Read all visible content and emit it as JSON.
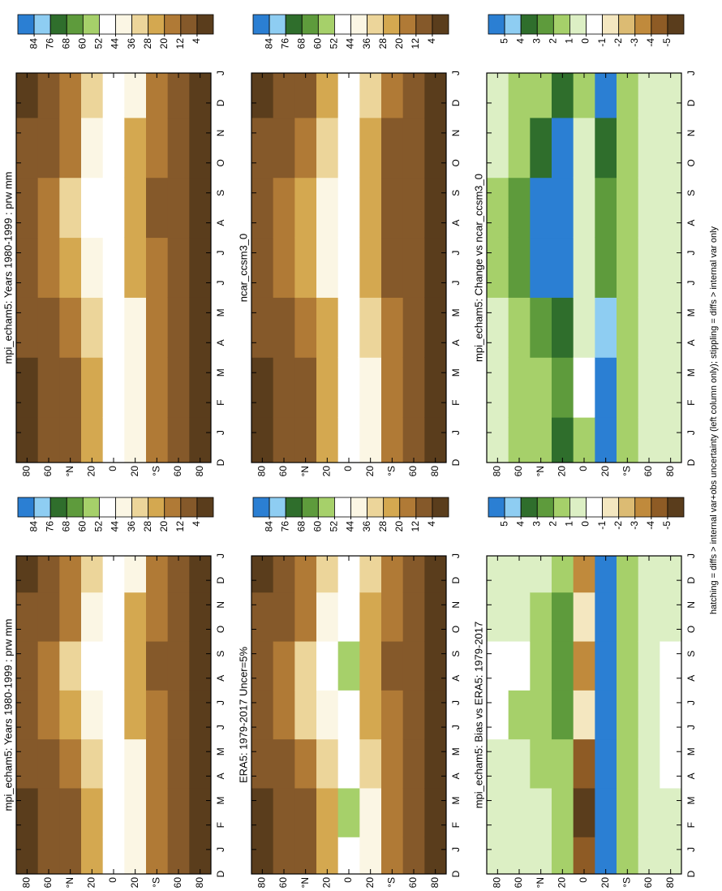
{
  "chart_data": [
    {
      "type": "heatmap",
      "title": "mpi_echam5: Years 1980-1999 : prw mm",
      "x": [
        0.5,
        2.5,
        4.5,
        6.5,
        8.5,
        10.5,
        12.5
      ],
      "y": [
        80,
        60,
        40,
        20,
        0,
        -20,
        -40,
        -60,
        -80
      ],
      "z": [
        [
          3,
          3,
          4,
          9,
          10,
          5,
          3
        ],
        [
          6,
          6,
          8,
          17,
          18,
          10,
          6
        ],
        [
          11,
          11,
          14,
          27,
          28,
          18,
          12
        ],
        [
          26,
          24,
          28,
          42,
          44,
          36,
          28
        ],
        [
          47,
          50,
          47,
          45,
          46,
          48,
          47
        ],
        [
          40,
          42,
          36,
          24,
          22,
          26,
          36
        ],
        [
          16,
          16,
          14,
          12,
          11,
          12,
          15
        ],
        [
          8,
          8,
          7,
          5,
          5,
          6,
          8
        ],
        [
          3,
          3,
          2,
          1,
          1,
          2,
          3
        ]
      ],
      "xlim": [
        0,
        13
      ],
      "ylim": [
        -90,
        90
      ],
      "xticks": [
        {
          "value": 0,
          "label": "D"
        },
        {
          "value": 1,
          "label": "J"
        },
        {
          "value": 2,
          "label": "F"
        },
        {
          "value": 3,
          "label": "M"
        },
        {
          "value": 4,
          "label": "A"
        },
        {
          "value": 5,
          "label": "M"
        },
        {
          "value": 6,
          "label": "J"
        },
        {
          "value": 7,
          "label": "J"
        },
        {
          "value": 8,
          "label": "A"
        },
        {
          "value": 9,
          "label": "S"
        },
        {
          "value": 10,
          "label": "O"
        },
        {
          "value": 11,
          "label": "N"
        },
        {
          "value": 12,
          "label": "D"
        },
        {
          "value": 13,
          "label": "J"
        }
      ],
      "yticks": [
        80,
        60,
        {
          "value": 40,
          "label": "°N"
        },
        20,
        0,
        {
          "value": -20,
          "label": "20"
        },
        {
          "value": -40,
          "label": "°S"
        },
        {
          "value": -60,
          "label": "60"
        },
        {
          "value": -80,
          "label": "80"
        }
      ],
      "levels": [
        84,
        76,
        68,
        60,
        52,
        44,
        36,
        28,
        20,
        12,
        4
      ],
      "colors": [
        "#2b7fd3",
        "#8ecdf2",
        "#2f6e2c",
        "#5e9b3c",
        "#a6d06a",
        "#ffffff",
        "#fbf6e4",
        "#ecd59a",
        "#d4a850",
        "#b07a36",
        "#85592a",
        "#5a3d1c"
      ]
    },
    {
      "type": "heatmap",
      "title": "mpi_echam5: Years 1980-1999 : prw mm",
      "x": [
        0.5,
        2.5,
        4.5,
        6.5,
        8.5,
        10.5,
        12.5
      ],
      "y": [
        80,
        60,
        40,
        20,
        0,
        -20,
        -40,
        -60,
        -80
      ],
      "z": [
        [
          3,
          3,
          4,
          9,
          10,
          5,
          3
        ],
        [
          6,
          6,
          8,
          17,
          18,
          10,
          6
        ],
        [
          11,
          11,
          14,
          27,
          28,
          18,
          12
        ],
        [
          26,
          24,
          28,
          42,
          44,
          36,
          28
        ],
        [
          47,
          50,
          47,
          45,
          46,
          48,
          47
        ],
        [
          40,
          42,
          36,
          24,
          22,
          26,
          36
        ],
        [
          16,
          16,
          14,
          12,
          11,
          12,
          15
        ],
        [
          8,
          8,
          7,
          5,
          5,
          6,
          8
        ],
        [
          3,
          3,
          2,
          1,
          1,
          2,
          3
        ]
      ],
      "xlim": [
        0,
        13
      ],
      "ylim": [
        -90,
        90
      ],
      "xticks": [
        {
          "value": 0,
          "label": "D"
        },
        {
          "value": 1,
          "label": "J"
        },
        {
          "value": 2,
          "label": "F"
        },
        {
          "value": 3,
          "label": "M"
        },
        {
          "value": 4,
          "label": "A"
        },
        {
          "value": 5,
          "label": "M"
        },
        {
          "value": 6,
          "label": "J"
        },
        {
          "value": 7,
          "label": "J"
        },
        {
          "value": 8,
          "label": "A"
        },
        {
          "value": 9,
          "label": "S"
        },
        {
          "value": 10,
          "label": "O"
        },
        {
          "value": 11,
          "label": "N"
        },
        {
          "value": 12,
          "label": "D"
        },
        {
          "value": 13,
          "label": "J"
        }
      ],
      "yticks": [
        80,
        60,
        {
          "value": 40,
          "label": "°N"
        },
        20,
        0,
        {
          "value": -20,
          "label": "20"
        },
        {
          "value": -40,
          "label": "°S"
        },
        {
          "value": -60,
          "label": "60"
        },
        {
          "value": -80,
          "label": "80"
        }
      ],
      "levels": [
        84,
        76,
        68,
        60,
        52,
        44,
        36,
        28,
        20,
        12,
        4
      ],
      "colors": [
        "#2b7fd3",
        "#8ecdf2",
        "#2f6e2c",
        "#5e9b3c",
        "#a6d06a",
        "#ffffff",
        "#fbf6e4",
        "#ecd59a",
        "#d4a850",
        "#b07a36",
        "#85592a",
        "#5a3d1c"
      ]
    },
    {
      "type": "heatmap",
      "title": "ERA5: 1979-2017 Uncer=5%",
      "x": [
        0.5,
        2.5,
        4.5,
        6.5,
        8.5,
        10.5,
        12.5
      ],
      "y": [
        80,
        60,
        40,
        20,
        0,
        -20,
        -40,
        -60,
        -80
      ],
      "z": [
        [
          3,
          3,
          4,
          10,
          11,
          5,
          3
        ],
        [
          6,
          6,
          8,
          18,
          19,
          10,
          6
        ],
        [
          11,
          11,
          15,
          28,
          29,
          19,
          12
        ],
        [
          27,
          25,
          29,
          43,
          45,
          37,
          29
        ],
        [
          48,
          52,
          49,
          50,
          52,
          50,
          48
        ],
        [
          39,
          41,
          35,
          25,
          23,
          27,
          35
        ],
        [
          16,
          16,
          14,
          12,
          11,
          12,
          15
        ],
        [
          8,
          8,
          7,
          5,
          5,
          6,
          8
        ],
        [
          3,
          3,
          2,
          1,
          1,
          2,
          3
        ]
      ],
      "xlim": [
        0,
        13
      ],
      "ylim": [
        -90,
        90
      ],
      "xticks": [
        {
          "value": 0,
          "label": "D"
        },
        {
          "value": 1,
          "label": "J"
        },
        {
          "value": 2,
          "label": "F"
        },
        {
          "value": 3,
          "label": "M"
        },
        {
          "value": 4,
          "label": "A"
        },
        {
          "value": 5,
          "label": "M"
        },
        {
          "value": 6,
          "label": "J"
        },
        {
          "value": 7,
          "label": "J"
        },
        {
          "value": 8,
          "label": "A"
        },
        {
          "value": 9,
          "label": "S"
        },
        {
          "value": 10,
          "label": "O"
        },
        {
          "value": 11,
          "label": "N"
        },
        {
          "value": 12,
          "label": "D"
        },
        {
          "value": 13,
          "label": "J"
        }
      ],
      "yticks": [
        80,
        60,
        {
          "value": 40,
          "label": "°N"
        },
        20,
        0,
        {
          "value": -20,
          "label": "20"
        },
        {
          "value": -40,
          "label": "°S"
        },
        {
          "value": -60,
          "label": "60"
        },
        {
          "value": -80,
          "label": "80"
        }
      ],
      "levels": [
        84,
        76,
        68,
        60,
        52,
        44,
        36,
        28,
        20,
        12,
        4
      ],
      "colors": [
        "#2b7fd3",
        "#8ecdf2",
        "#2f6e2c",
        "#5e9b3c",
        "#a6d06a",
        "#ffffff",
        "#fbf6e4",
        "#ecd59a",
        "#d4a850",
        "#b07a36",
        "#85592a",
        "#5a3d1c"
      ]
    },
    {
      "type": "heatmap",
      "title": "ncar_ccsm3_0",
      "x": [
        0.5,
        2.5,
        4.5,
        6.5,
        8.5,
        10.5,
        12.5
      ],
      "y": [
        80,
        60,
        40,
        20,
        0,
        -20,
        -40,
        -60,
        -80
      ],
      "z": [
        [
          3,
          3,
          4,
          9,
          10,
          5,
          3
        ],
        [
          6,
          6,
          8,
          16,
          17,
          10,
          6
        ],
        [
          10,
          10,
          13,
          24,
          25,
          16,
          11
        ],
        [
          22,
          20,
          24,
          36,
          38,
          30,
          24
        ],
        [
          46,
          48,
          50,
          46,
          47,
          46,
          46
        ],
        [
          38,
          40,
          32,
          22,
          20,
          24,
          34
        ],
        [
          15,
          15,
          13,
          11,
          10,
          11,
          14
        ],
        [
          8,
          8,
          7,
          5,
          5,
          6,
          8
        ],
        [
          3,
          3,
          2,
          1,
          1,
          2,
          3
        ]
      ],
      "xlim": [
        0,
        13
      ],
      "ylim": [
        -90,
        90
      ],
      "xticks": [
        {
          "value": 0,
          "label": "D"
        },
        {
          "value": 1,
          "label": "J"
        },
        {
          "value": 2,
          "label": "F"
        },
        {
          "value": 3,
          "label": "M"
        },
        {
          "value": 4,
          "label": "A"
        },
        {
          "value": 5,
          "label": "M"
        },
        {
          "value": 6,
          "label": "J"
        },
        {
          "value": 7,
          "label": "J"
        },
        {
          "value": 8,
          "label": "A"
        },
        {
          "value": 9,
          "label": "S"
        },
        {
          "value": 10,
          "label": "O"
        },
        {
          "value": 11,
          "label": "N"
        },
        {
          "value": 12,
          "label": "D"
        },
        {
          "value": 13,
          "label": "J"
        }
      ],
      "yticks": [
        80,
        60,
        {
          "value": 40,
          "label": "°N"
        },
        20,
        0,
        {
          "value": -20,
          "label": "20"
        },
        {
          "value": -40,
          "label": "°S"
        },
        {
          "value": -60,
          "label": "60"
        },
        {
          "value": -80,
          "label": "80"
        }
      ],
      "levels": [
        84,
        76,
        68,
        60,
        52,
        44,
        36,
        28,
        20,
        12,
        4
      ],
      "colors": [
        "#2b7fd3",
        "#8ecdf2",
        "#2f6e2c",
        "#5e9b3c",
        "#a6d06a",
        "#ffffff",
        "#fbf6e4",
        "#ecd59a",
        "#d4a850",
        "#b07a36",
        "#85592a",
        "#5a3d1c"
      ]
    },
    {
      "type": "heatmap",
      "title": "mpi_echam5: Bias vs ERA5: 1979-2017",
      "x": [
        0.5,
        2.5,
        4.5,
        6.5,
        8.5,
        10.5,
        12.5
      ],
      "y": [
        80,
        60,
        40,
        20,
        0,
        -20,
        -40,
        -60,
        -80
      ],
      "z": [
        [
          0.3,
          0.4,
          0.5,
          -0.6,
          -0.7,
          0.2,
          0.3
        ],
        [
          0.5,
          0.6,
          0.8,
          1.2,
          -1,
          0.6,
          0.5
        ],
        [
          0.8,
          0.9,
          1.2,
          1.5,
          1.4,
          1,
          0.8
        ],
        [
          1.5,
          1.4,
          1.3,
          2.5,
          2.6,
          2,
          1.4
        ],
        [
          -4.5,
          -6,
          -5,
          -2,
          -3.5,
          -1.5,
          -4
        ],
        [
          5.5,
          5.2,
          5.1,
          5.3,
          5.6,
          5.4,
          5.5
        ],
        [
          1.8,
          1.6,
          1.5,
          1.4,
          1.3,
          1.5,
          1.7
        ],
        [
          0.9,
          0.8,
          0.8,
          0.7,
          0.7,
          0.8,
          0.9
        ],
        [
          0.2,
          0.1,
          -0.2,
          -0.5,
          -0.4,
          0.1,
          0.2
        ]
      ],
      "xlim": [
        0,
        13
      ],
      "ylim": [
        -90,
        90
      ],
      "xticks": [
        {
          "value": 0,
          "label": "D"
        },
        {
          "value": 1,
          "label": "J"
        },
        {
          "value": 2,
          "label": "F"
        },
        {
          "value": 3,
          "label": "M"
        },
        {
          "value": 4,
          "label": "A"
        },
        {
          "value": 5,
          "label": "M"
        },
        {
          "value": 6,
          "label": "J"
        },
        {
          "value": 7,
          "label": "J"
        },
        {
          "value": 8,
          "label": "A"
        },
        {
          "value": 9,
          "label": "S"
        },
        {
          "value": 10,
          "label": "O"
        },
        {
          "value": 11,
          "label": "N"
        },
        {
          "value": 12,
          "label": "D"
        },
        {
          "value": 13,
          "label": "J"
        }
      ],
      "yticks": [
        80,
        60,
        {
          "value": 40,
          "label": "°N"
        },
        20,
        0,
        {
          "value": -20,
          "label": "20"
        },
        {
          "value": -40,
          "label": "°S"
        },
        {
          "value": -60,
          "label": "60"
        },
        {
          "value": -80,
          "label": "80"
        }
      ],
      "levels": [
        5,
        4,
        3,
        2,
        1,
        0,
        -1,
        -2,
        -3,
        -4,
        -5
      ],
      "colors": [
        "#2b7fd3",
        "#8ecdf2",
        "#2f6e2c",
        "#5e9b3c",
        "#a6d06a",
        "#dcefc4",
        "#ffffff",
        "#f4e7c0",
        "#dcbb73",
        "#c08a3c",
        "#8e5b25",
        "#5a3d1c"
      ]
    },
    {
      "type": "heatmap",
      "title": "mpi_echam5: Change vs ncar_ccsm3_0",
      "x": [
        0.5,
        2.5,
        4.5,
        6.5,
        8.5,
        10.5,
        12.5
      ],
      "y": [
        80,
        60,
        40,
        20,
        0,
        -20,
        -40,
        -60,
        -80
      ],
      "z": [
        [
          0.4,
          0.5,
          0.8,
          1.5,
          1.6,
          0.9,
          0.5
        ],
        [
          1,
          1,
          1.3,
          2.5,
          2.8,
          1.6,
          1
        ],
        [
          1.5,
          1.5,
          2,
          5.5,
          5.8,
          3,
          1.8
        ],
        [
          3,
          2.6,
          3.2,
          6.5,
          6.8,
          5.6,
          3.8
        ],
        [
          1.5,
          -1,
          0.5,
          0.2,
          0.4,
          0.8,
          1
        ],
        [
          5.3,
          5.4,
          4.5,
          2.5,
          2.2,
          3.4,
          5
        ],
        [
          1.8,
          1.6,
          1.5,
          1.2,
          1.1,
          1.4,
          1.7
        ],
        [
          0.9,
          0.8,
          0.8,
          0.7,
          0.6,
          0.7,
          0.9
        ],
        [
          0.3,
          0.2,
          0.1,
          0,
          0.1,
          0.2,
          0.3
        ]
      ],
      "xlim": [
        0,
        13
      ],
      "ylim": [
        -90,
        90
      ],
      "xticks": [
        {
          "value": 0,
          "label": "D"
        },
        {
          "value": 1,
          "label": "J"
        },
        {
          "value": 2,
          "label": "F"
        },
        {
          "value": 3,
          "label": "M"
        },
        {
          "value": 4,
          "label": "A"
        },
        {
          "value": 5,
          "label": "M"
        },
        {
          "value": 6,
          "label": "J"
        },
        {
          "value": 7,
          "label": "J"
        },
        {
          "value": 8,
          "label": "A"
        },
        {
          "value": 9,
          "label": "S"
        },
        {
          "value": 10,
          "label": "O"
        },
        {
          "value": 11,
          "label": "N"
        },
        {
          "value": 12,
          "label": "D"
        },
        {
          "value": 13,
          "label": "J"
        }
      ],
      "yticks": [
        80,
        60,
        {
          "value": 40,
          "label": "°N"
        },
        20,
        0,
        {
          "value": -20,
          "label": "20"
        },
        {
          "value": -40,
          "label": "°S"
        },
        {
          "value": -60,
          "label": "60"
        },
        {
          "value": -80,
          "label": "80"
        }
      ],
      "levels": [
        5,
        4,
        3,
        2,
        1,
        0,
        -1,
        -2,
        -3,
        -4,
        -5
      ],
      "colors": [
        "#2b7fd3",
        "#8ecdf2",
        "#2f6e2c",
        "#5e9b3c",
        "#a6d06a",
        "#dcefc4",
        "#ffffff",
        "#f4e7c0",
        "#dcbb73",
        "#c08a3c",
        "#8e5b25",
        "#5a3d1c"
      ]
    }
  ],
  "caption": "hatching = diffs > internal var+obs uncertainty (left column only); stippling = diffs > internal var only"
}
